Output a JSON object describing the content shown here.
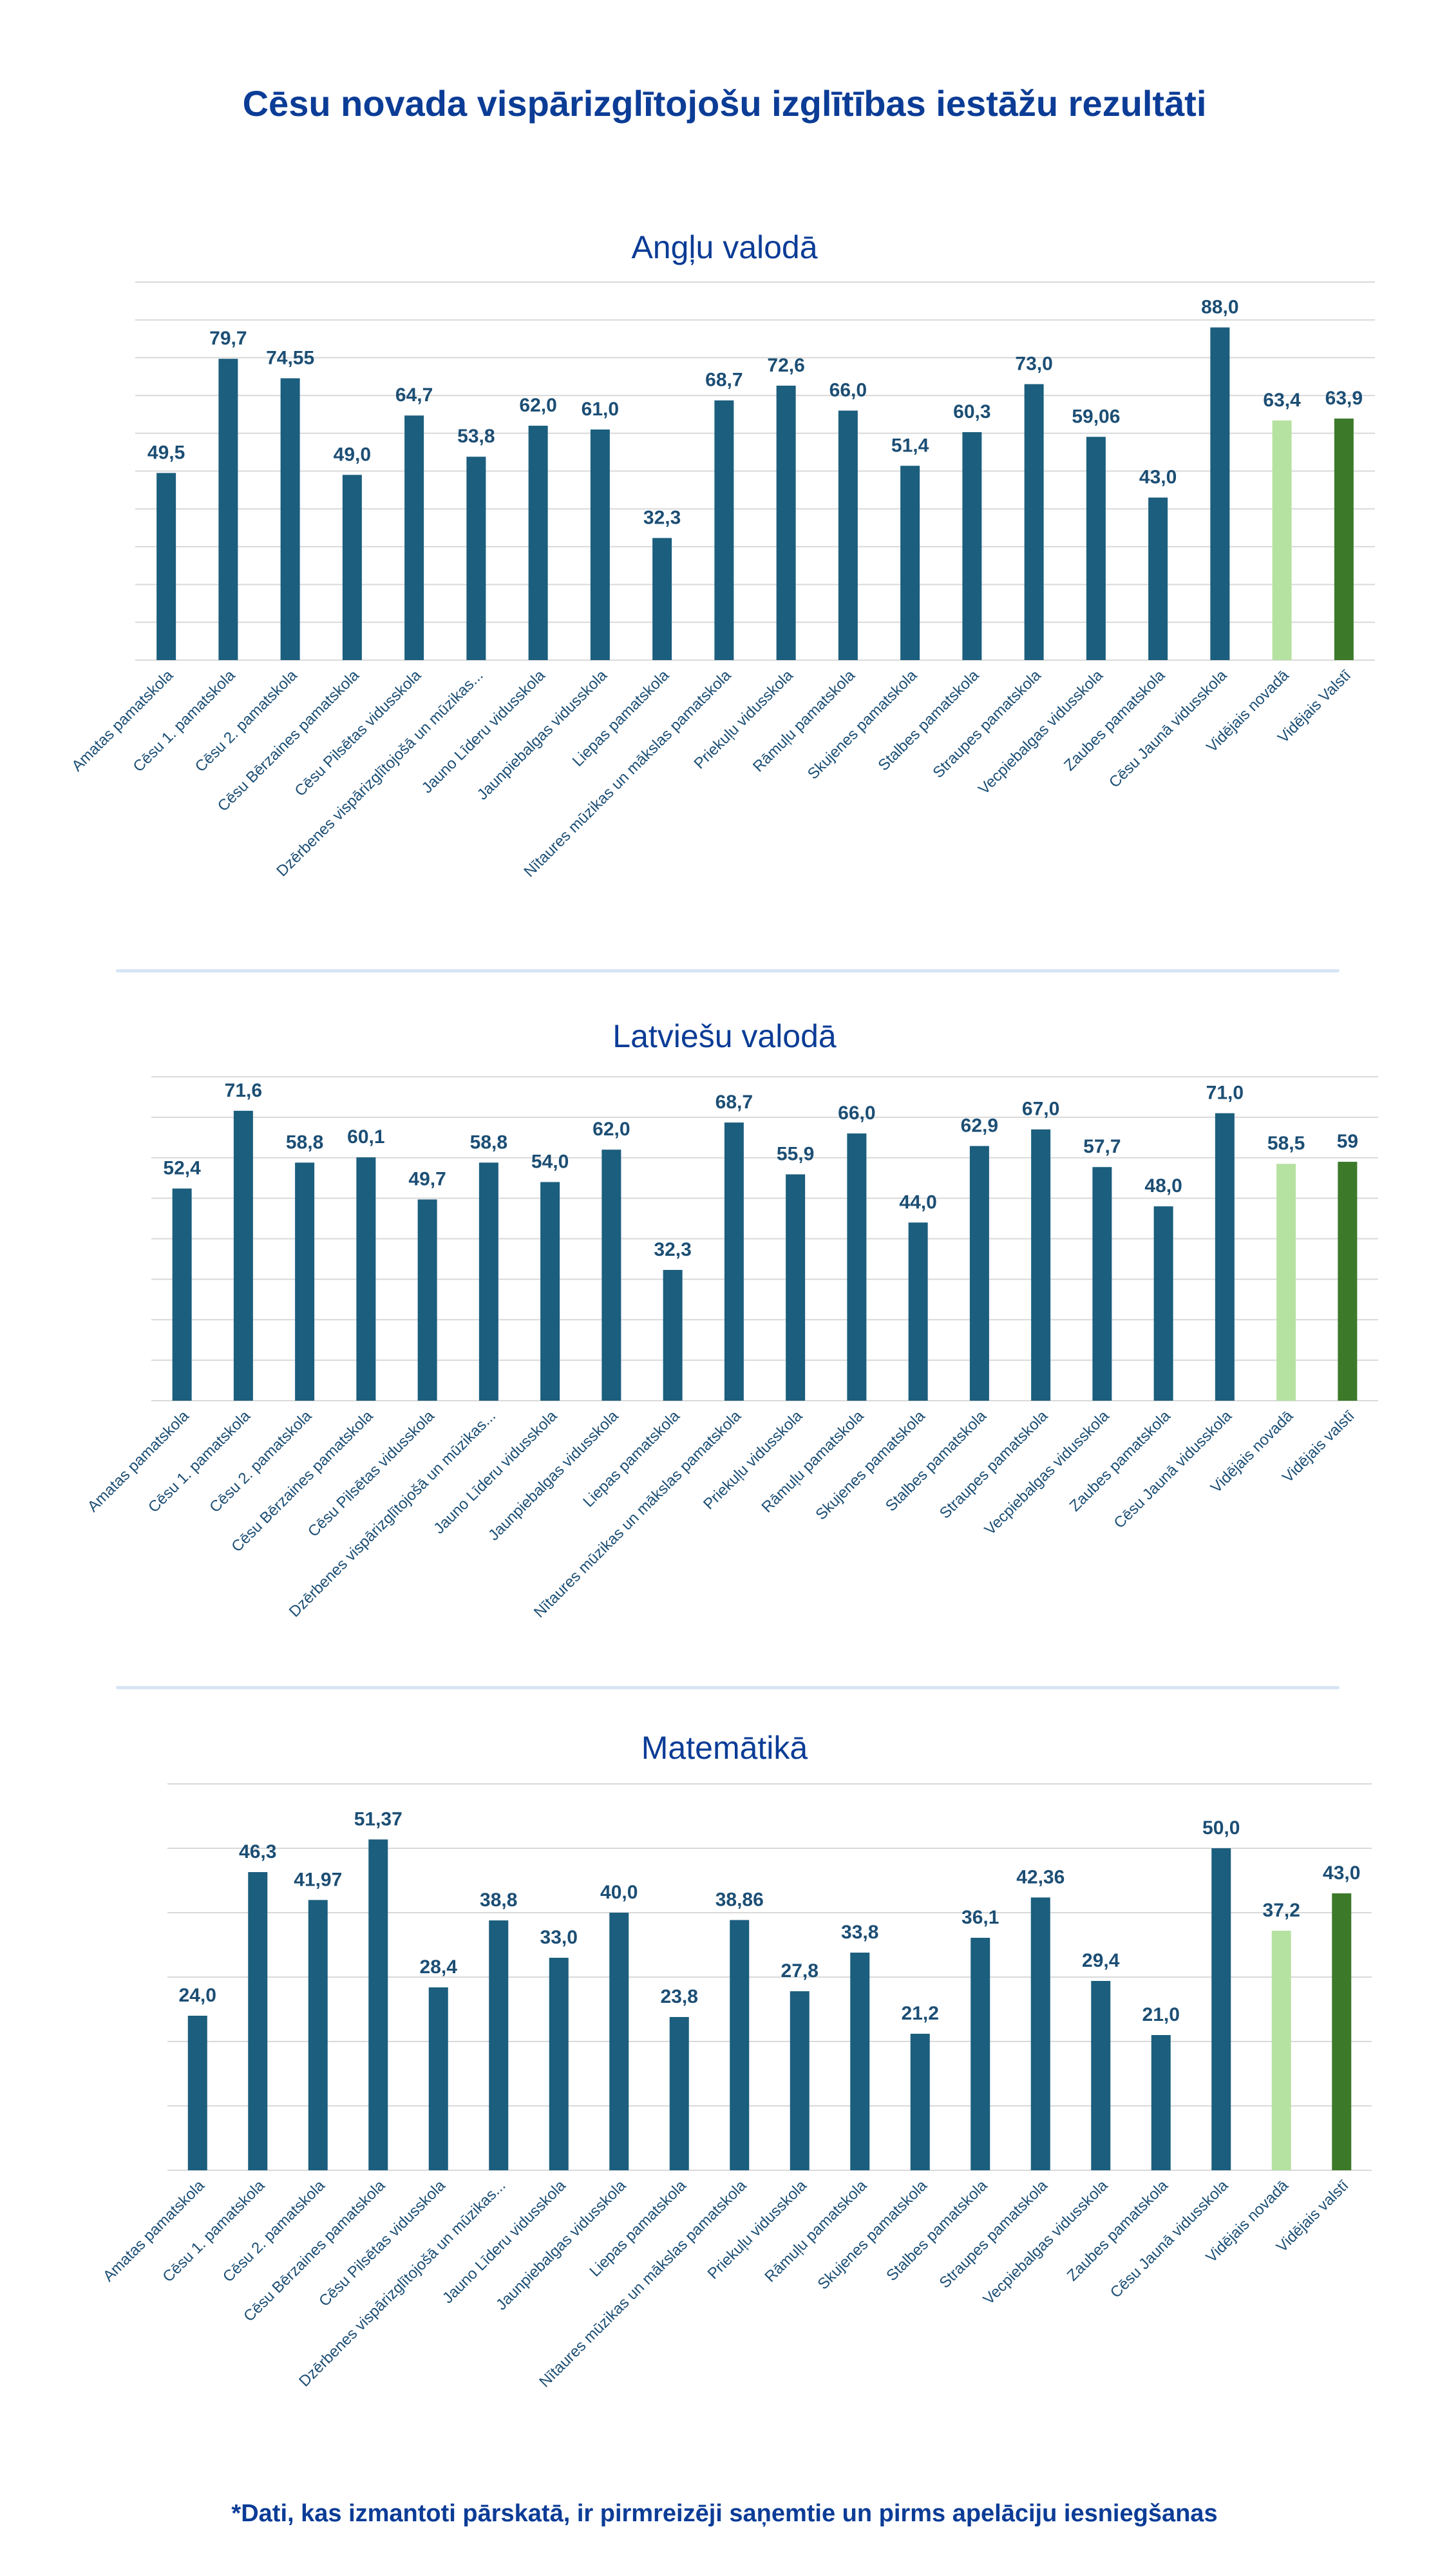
{
  "title": "Cēsu novada vispārizglītojošu izglītības iestāžu rezultāti",
  "footnote": "*Dati, kas izmantoti pārskatā, ir pirmreizēji saņemtie un pirms apelāciju iesniegšanas",
  "colors": {
    "title": "#0b3c96",
    "bar_school": "#1b5e7e",
    "bar_novads": "#b6e2a1",
    "bar_valsts": "#3c7a2a",
    "label": "#1c4e74",
    "grid": "#d9d9d9",
    "divider": "#d6e4f5"
  },
  "chart_data": [
    {
      "type": "bar",
      "title": "Angļu valodā",
      "categories": [
        "Amatas pamatskola",
        "Cēsu 1. pamatskola",
        "Cēsu 2. pamatskola",
        "Cēsu Bērzaines pamatskola",
        "Cēsu Pilsētas vidusskola",
        "Dzērbenes vispārizglītojošā un mūzikas...",
        "Jauno Līderu vidusskola",
        "Jaunpiebalgas vidusskola",
        "Liepas pamatskola",
        "Nītaures mūzikas un mākslas pamatskola",
        "Priekuļu vidusskola",
        "Rāmuļu pamatskola",
        "Skujenes pamatskola",
        "Stalbes pamatskola",
        "Straupes pamatskola",
        "Vecpiebalgas vidusskola",
        "Zaubes pamatskola",
        "Cēsu Jaunā vidusskola",
        "Vidējais novadā",
        "Vidējais Valstī"
      ],
      "values": [
        49.5,
        79.7,
        74.55,
        49.0,
        64.7,
        53.8,
        62.0,
        61.0,
        32.3,
        68.7,
        72.6,
        66.0,
        51.4,
        60.3,
        73.0,
        59.06,
        43.0,
        88.0,
        63.4,
        63.9
      ],
      "labels": [
        "49,5",
        "79,7",
        "74,55",
        "49,0",
        "64,7",
        "53,8",
        "62,0",
        "61,0",
        "32,3",
        "68,7",
        "72,6",
        "66,0",
        "51,4",
        "60,3",
        "73,0",
        "59,06",
        "43,0",
        "88,0",
        "63,4",
        "63,9"
      ],
      "ylim": [
        0,
        100
      ],
      "grid": true
    },
    {
      "type": "bar",
      "title": "Latviešu valodā",
      "categories": [
        "Amatas pamatskola",
        "Cēsu 1. pamatskola",
        "Cēsu 2. pamatskola",
        "Cēsu Bērzaines pamatskola",
        "Cēsu Pilsētas vidusskola",
        "Dzērbenes vispārizglītojošā un mūzikas...",
        "Jauno Līderu vidusskola",
        "Jaunpiebalgas vidusskola",
        "Liepas pamatskola",
        "Nītaures mūzikas un mākslas pamatskola",
        "Priekuļu vidusskola",
        "Rāmuļu pamatskola",
        "Skujenes pamatskola",
        "Stalbes pamatskola",
        "Straupes pamatskola",
        "Vecpiebalgas vidusskola",
        "Zaubes pamatskola",
        "Cēsu Jaunā vidusskola",
        "Vidējais novadā",
        "Vidējais valstī"
      ],
      "values": [
        52.4,
        71.6,
        58.8,
        60.1,
        49.7,
        58.8,
        54.0,
        62.0,
        32.3,
        68.7,
        55.9,
        66.0,
        44.0,
        62.9,
        67.0,
        57.7,
        48.0,
        71.0,
        58.5,
        59
      ],
      "labels": [
        "52,4",
        "71,6",
        "58,8",
        "60,1",
        "49,7",
        "58,8",
        "54,0",
        "62,0",
        "32,3",
        "68,7",
        "55,9",
        "66,0",
        "44,0",
        "62,9",
        "67,0",
        "57,7",
        "48,0",
        "71,0",
        "58,5",
        "59"
      ],
      "ylim": [
        0,
        80
      ],
      "grid": true
    },
    {
      "type": "bar",
      "title": "Matemātikā",
      "categories": [
        "Amatas pamatskola",
        "Cēsu 1. pamatskola",
        "Cēsu 2. pamatskola",
        "Cēsu Bērzaines pamatskola",
        "Cēsu Pilsētas vidusskola",
        "Dzērbenes vispārizglītojošā un mūzikas...",
        "Jauno Līderu vidusskola",
        "Jaunpiebalgas vidusskola",
        "Liepas pamatskola",
        "Nītaures mūzikas un mākslas pamatskola",
        "Priekuļu vidusskola",
        "Rāmuļu pamatskola",
        "Skujenes pamatskola",
        "Stalbes pamatskola",
        "Straupes pamatskola",
        "Vecpiebalgas vidusskola",
        "Zaubes pamatskola",
        "Cēsu Jaunā vidusskola",
        "Vidējais novadā",
        "Vidējais valstī"
      ],
      "values": [
        24.0,
        46.3,
        41.97,
        51.37,
        28.4,
        38.8,
        33.0,
        40.0,
        23.8,
        38.86,
        27.8,
        33.8,
        21.2,
        36.1,
        42.36,
        29.4,
        21.0,
        50.0,
        37.2,
        43.0
      ],
      "labels": [
        "24,0",
        "46,3",
        "41,97",
        "51,37",
        "28,4",
        "38,8",
        "33,0",
        "40,0",
        "23,8",
        "38,86",
        "27,8",
        "33,8",
        "21,2",
        "36,1",
        "42,36",
        "29,4",
        "21,0",
        "50,0",
        "37,2",
        "43,0"
      ],
      "ylim": [
        0,
        60
      ],
      "grid": true
    }
  ]
}
